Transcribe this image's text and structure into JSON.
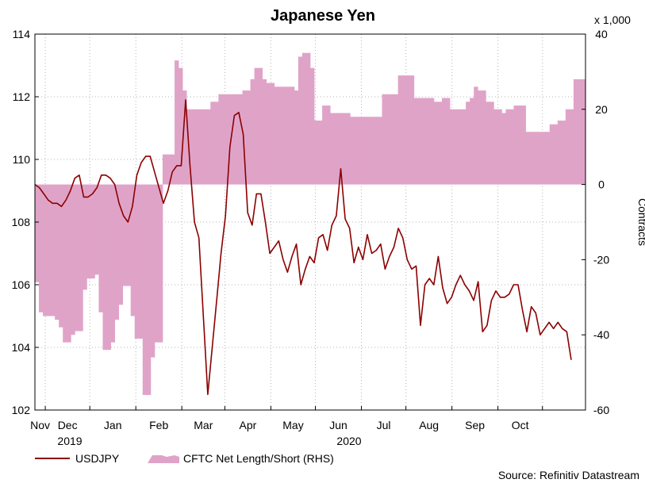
{
  "chart_data": {
    "type": "line+area",
    "title": "Japanese Yen",
    "left_axis": {
      "label": "",
      "ylim": [
        102,
        114
      ],
      "ticks": [
        102,
        104,
        106,
        108,
        110,
        112,
        114
      ]
    },
    "right_axis": {
      "label": "Contracts",
      "multiplier": "x 1,000",
      "ylim": [
        -60,
        40
      ],
      "ticks": [
        -60,
        -40,
        -20,
        0,
        20,
        40
      ]
    },
    "x_axis": {
      "month_labels": [
        "Nov",
        "Dec",
        "Jan",
        "Feb",
        "Mar",
        "Apr",
        "May",
        "Jun",
        "Jul",
        "Aug",
        "Sep",
        "Oct"
      ],
      "year_labels": [
        "2019",
        "2020"
      ],
      "start": "2019-10-25",
      "end": "2020-10-30"
    },
    "series": [
      {
        "name": "USDJPY",
        "axis": "left",
        "color": "#8b0000",
        "values": [
          109.2,
          109.1,
          108.9,
          108.7,
          108.6,
          108.6,
          108.5,
          108.7,
          109.0,
          109.4,
          109.5,
          108.8,
          108.8,
          108.9,
          109.1,
          109.5,
          109.5,
          109.4,
          109.2,
          108.6,
          108.2,
          108.0,
          108.5,
          109.5,
          109.9,
          110.1,
          110.1,
          109.6,
          109.1,
          108.6,
          109.0,
          109.6,
          109.8,
          109.8,
          111.9,
          109.8,
          108.0,
          107.5,
          105.0,
          102.5,
          104.0,
          105.5,
          107.0,
          108.2,
          110.4,
          111.4,
          111.5,
          110.8,
          108.3,
          107.9,
          108.9,
          108.9,
          108.0,
          107.0,
          107.2,
          107.4,
          106.8,
          106.4,
          106.9,
          107.3,
          106.0,
          106.5,
          106.9,
          106.7,
          107.5,
          107.6,
          107.1,
          107.9,
          108.2,
          109.7,
          108.1,
          107.8,
          106.7,
          107.2,
          106.8,
          107.6,
          107.0,
          107.1,
          107.3,
          106.5,
          106.9,
          107.2,
          107.8,
          107.5,
          106.8,
          106.5,
          106.6,
          104.7,
          106.0,
          106.2,
          106.0,
          106.9,
          105.9,
          105.4,
          105.6,
          106.0,
          106.3,
          106.0,
          105.8,
          105.5,
          106.1,
          104.5,
          104.7,
          105.5,
          105.8,
          105.6,
          105.6,
          105.7,
          106.0,
          106.0,
          105.2,
          104.5,
          105.3,
          105.1,
          104.4,
          104.6,
          104.8,
          104.6,
          104.8,
          104.6,
          104.5,
          103.6
        ]
      },
      {
        "name": "CFTC Net Length/Short (RHS)",
        "axis": "right",
        "color": "#e0a3c8",
        "values": [
          -26,
          -34,
          -35,
          -35,
          -35,
          -36,
          -38,
          -42,
          -42,
          -40,
          -39,
          -39,
          -28,
          -25,
          -25,
          -24,
          -34,
          -44,
          -44,
          -42,
          -36,
          -32,
          -27,
          -27,
          -35,
          -41,
          -41,
          -56,
          -56,
          -46,
          -42,
          -42,
          8,
          8,
          8,
          33,
          31,
          25,
          20,
          20,
          20,
          20,
          20,
          20,
          22,
          22,
          24,
          24,
          24,
          24,
          24,
          24,
          25,
          25,
          28,
          31,
          31,
          28,
          27,
          27,
          26,
          26,
          26,
          26,
          26,
          25,
          34,
          35,
          35,
          31,
          17,
          17,
          21,
          21,
          19,
          19,
          19,
          19,
          19,
          18,
          18,
          18,
          18,
          18,
          18,
          18,
          18,
          24,
          24,
          24,
          24,
          29,
          29,
          29,
          29,
          23,
          23,
          23,
          23,
          23,
          22,
          22,
          23,
          23,
          20,
          20,
          20,
          20,
          22,
          23,
          26,
          25,
          25,
          22,
          22,
          20,
          20,
          19,
          20,
          20,
          21,
          21,
          21,
          14,
          14,
          14,
          14,
          14,
          14,
          16,
          16,
          17,
          17,
          20,
          20,
          28,
          28,
          28
        ]
      }
    ],
    "legend": [
      "USDJPY",
      "CFTC Net Length/Short (RHS)"
    ],
    "source": "Source: Refinitiv Datastream",
    "grid": true
  }
}
